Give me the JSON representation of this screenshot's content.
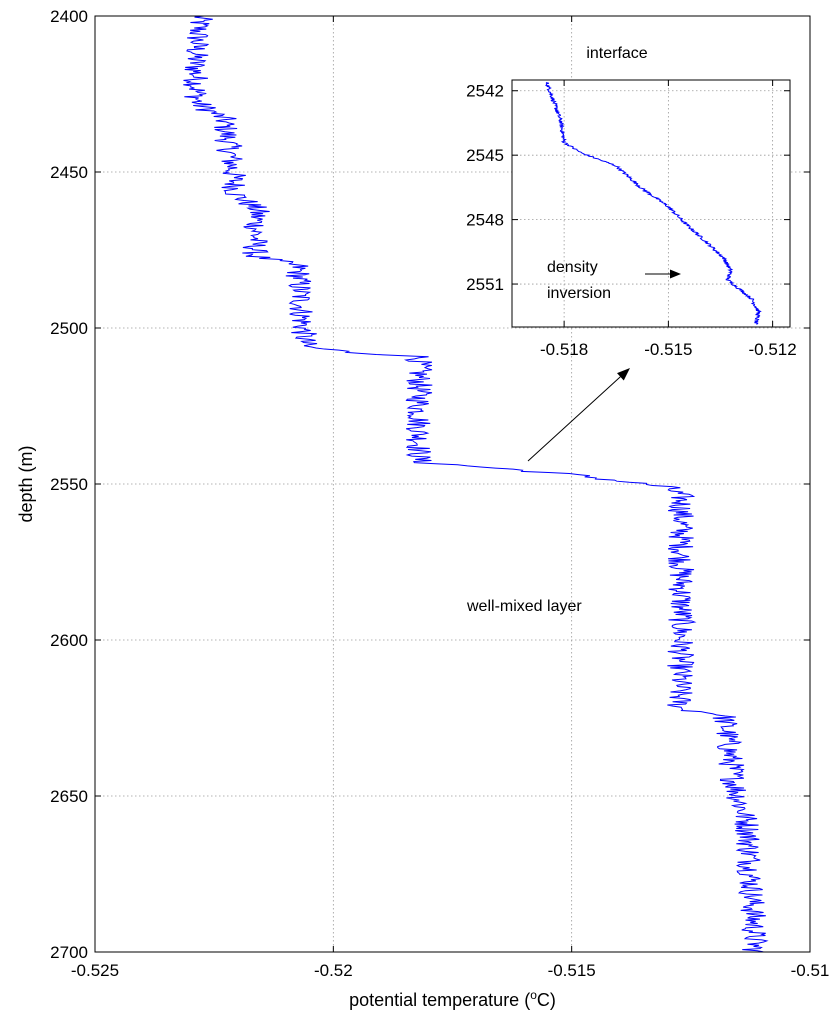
{
  "chart_data": [
    {
      "type": "line",
      "xlabel": "potential temperature  (",
      "xlabel_sup": "o",
      "xlabel_unit": "C)",
      "ylabel": "depth  (m)",
      "xlim": [
        -0.525,
        -0.51
      ],
      "ylim": [
        2700,
        2400
      ],
      "y_inverted": true,
      "grid": true,
      "x_ticks": [
        "-0.525",
        "-0.52",
        "-0.515",
        "-0.51"
      ],
      "y_ticks": [
        "2400",
        "2450",
        "2500",
        "2550",
        "2600",
        "2650",
        "2700"
      ],
      "line_color": "#0000ff",
      "annotation": "well-mixed layer",
      "series": [
        {
          "noise": 0.00028,
          "points": [
            [
              -0.5228,
              2400
            ],
            [
              -0.5229,
              2414
            ],
            [
              -0.52285,
              2428
            ],
            [
              -0.5223,
              2433
            ],
            [
              -0.52215,
              2445
            ],
            [
              -0.52205,
              2457
            ],
            [
              -0.5216,
              2462
            ],
            [
              -0.52165,
              2477
            ],
            [
              -0.52075,
              2480
            ],
            [
              -0.5206,
              2506
            ],
            [
              -0.5195,
              2508
            ],
            [
              -0.5182,
              2509
            ],
            [
              -0.5182,
              2543
            ],
            [
              -0.5165,
              2545
            ],
            [
              -0.515,
              2547
            ],
            [
              -0.514,
              2549
            ],
            [
              -0.513,
              2551
            ],
            [
              -0.5127,
              2554
            ],
            [
              -0.5127,
              2600
            ],
            [
              -0.51275,
              2622
            ],
            [
              -0.5118,
              2624
            ],
            [
              -0.5116,
              2645
            ],
            [
              -0.5113,
              2660
            ],
            [
              -0.51115,
              2700
            ]
          ]
        }
      ]
    },
    {
      "type": "line",
      "title": "interface",
      "xlim": [
        -0.5195,
        -0.5115
      ],
      "ylim": [
        2553,
        2541.5
      ],
      "y_inverted": true,
      "grid": true,
      "x_ticks": [
        "-0.518",
        "-0.515",
        "-0.512"
      ],
      "y_ticks": [
        "2542",
        "2545",
        "2548",
        "2551"
      ],
      "line_color": "#0000ff",
      "annotation": "density inversion",
      "annotation_lines": [
        "density",
        "inversion"
      ],
      "series": [
        {
          "noise": 6e-05,
          "points": [
            [
              -0.5185,
              2541.6
            ],
            [
              -0.5183,
              2542.5
            ],
            [
              -0.5181,
              2543.4
            ],
            [
              -0.518,
              2544.4
            ],
            [
              -0.5175,
              2544.9
            ],
            [
              -0.5165,
              2545.5
            ],
            [
              -0.5158,
              2546.5
            ],
            [
              -0.515,
              2547.4
            ],
            [
              -0.5145,
              2548.2
            ],
            [
              -0.5138,
              2549.2
            ],
            [
              -0.5134,
              2549.8
            ],
            [
              -0.5132,
              2550.4
            ],
            [
              -0.5133,
              2550.8
            ],
            [
              -0.5129,
              2551.3
            ],
            [
              -0.5126,
              2551.7
            ],
            [
              -0.5124,
              2552.3
            ],
            [
              -0.5125,
              2552.9
            ]
          ]
        }
      ]
    }
  ]
}
